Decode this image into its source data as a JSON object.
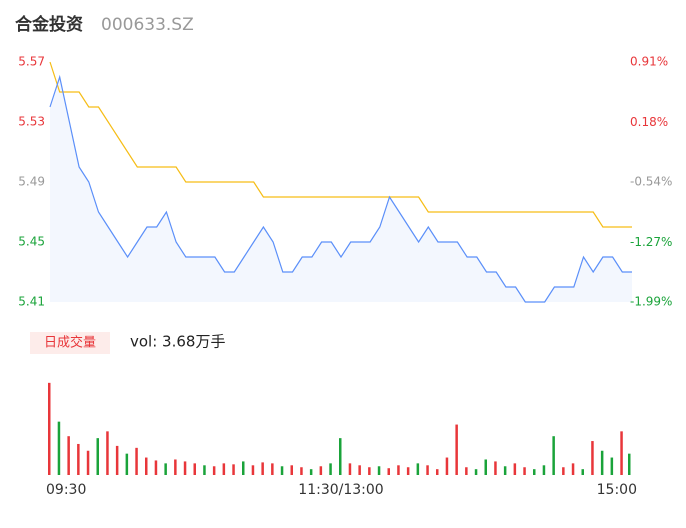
{
  "chart_data": {
    "type": "intraday",
    "title": "合金投资",
    "subtitle": "000633.SZ",
    "x": [
      0,
      4,
      8,
      12,
      16,
      20,
      24,
      28,
      32,
      36,
      40,
      44,
      48,
      52,
      56,
      60,
      64,
      68,
      72,
      76,
      80,
      84,
      88,
      92,
      96,
      100,
      104,
      108,
      112,
      116,
      120,
      124,
      128,
      132,
      136,
      140,
      144,
      148,
      152,
      156,
      160,
      164,
      168,
      172,
      176,
      180,
      184,
      188,
      192,
      196,
      200,
      204,
      208,
      212,
      216,
      220,
      224,
      228,
      232,
      236,
      240
    ],
    "xlim": [
      0,
      240
    ],
    "xticks": [
      {
        "value": 0,
        "label": "09:30"
      },
      {
        "value": 120,
        "label": "11:30/13:00"
      },
      {
        "value": 240,
        "label": "15:00"
      }
    ],
    "series": [
      {
        "name": "price",
        "color": "#5b8ff9",
        "values": [
          5.54,
          5.56,
          5.53,
          5.5,
          5.49,
          5.47,
          5.46,
          5.45,
          5.44,
          5.45,
          5.46,
          5.46,
          5.47,
          5.45,
          5.44,
          5.44,
          5.44,
          5.44,
          5.43,
          5.43,
          5.44,
          5.45,
          5.46,
          5.45,
          5.43,
          5.43,
          5.44,
          5.44,
          5.45,
          5.45,
          5.44,
          5.45,
          5.45,
          5.45,
          5.46,
          5.48,
          5.47,
          5.46,
          5.45,
          5.46,
          5.45,
          5.45,
          5.45,
          5.44,
          5.44,
          5.43,
          5.43,
          5.42,
          5.42,
          5.41,
          5.41,
          5.41,
          5.42,
          5.42,
          5.42,
          5.44,
          5.43,
          5.44,
          5.44,
          5.43,
          5.43
        ]
      },
      {
        "name": "average",
        "color": "#f6bd16",
        "values": [
          5.57,
          5.55,
          5.55,
          5.55,
          5.54,
          5.54,
          5.53,
          5.52,
          5.51,
          5.5,
          5.5,
          5.5,
          5.5,
          5.5,
          5.49,
          5.49,
          5.49,
          5.49,
          5.49,
          5.49,
          5.49,
          5.49,
          5.48,
          5.48,
          5.48,
          5.48,
          5.48,
          5.48,
          5.48,
          5.48,
          5.48,
          5.48,
          5.48,
          5.48,
          5.48,
          5.48,
          5.48,
          5.48,
          5.48,
          5.47,
          5.47,
          5.47,
          5.47,
          5.47,
          5.47,
          5.47,
          5.47,
          5.47,
          5.47,
          5.47,
          5.47,
          5.47,
          5.47,
          5.47,
          5.47,
          5.47,
          5.47,
          5.46,
          5.46,
          5.46,
          5.46
        ]
      }
    ],
    "ylim": [
      5.41,
      5.57
    ],
    "yticks": [
      5.57,
      5.53,
      5.49,
      5.45,
      5.41
    ],
    "ytick_colors": [
      "#e8363a",
      "#e8363a",
      "#999999",
      "#1aa33a",
      "#1aa33a"
    ],
    "y2lim": [
      -1.99,
      0.91
    ],
    "y2ticks": [
      {
        "value": 0.91,
        "label": "0.91%"
      },
      {
        "value": 0.18,
        "label": "0.18%"
      },
      {
        "value": -0.54,
        "label": "-0.54%"
      },
      {
        "value": -1.27,
        "label": "-1.27%"
      },
      {
        "value": -1.99,
        "label": "-1.99%"
      }
    ],
    "volume": {
      "button": "日成交量",
      "label": "vol: 3.68万手",
      "vlim": [
        0,
        100
      ],
      "values": [
        95,
        55,
        40,
        32,
        25,
        38,
        45,
        30,
        22,
        28,
        18,
        15,
        12,
        16,
        14,
        12,
        10,
        9,
        12,
        11,
        14,
        10,
        13,
        12,
        9,
        10,
        8,
        6,
        9,
        12,
        38,
        12,
        10,
        8,
        9,
        7,
        10,
        8,
        12,
        10,
        6,
        18,
        52,
        8,
        6,
        16,
        14,
        9,
        12,
        8,
        6,
        10,
        40,
        8,
        12,
        6,
        35,
        25,
        18,
        45,
        22
      ],
      "colors": [
        "#e8363a",
        "#1aa33a",
        "#e8363a",
        "#e8363a",
        "#e8363a",
        "#1aa33a",
        "#e8363a",
        "#e8363a",
        "#1aa33a",
        "#e8363a",
        "#e8363a",
        "#e8363a",
        "#1aa33a",
        "#e8363a",
        "#e8363a",
        "#e8363a",
        "#1aa33a",
        "#e8363a",
        "#e8363a",
        "#e8363a",
        "#1aa33a",
        "#e8363a",
        "#e8363a",
        "#e8363a",
        "#1aa33a",
        "#e8363a",
        "#e8363a",
        "#1aa33a",
        "#e8363a",
        "#1aa33a",
        "#1aa33a",
        "#e8363a",
        "#e8363a",
        "#e8363a",
        "#1aa33a",
        "#e8363a",
        "#e8363a",
        "#e8363a",
        "#1aa33a",
        "#e8363a",
        "#e8363a",
        "#e8363a",
        "#e8363a",
        "#e8363a",
        "#1aa33a",
        "#1aa33a",
        "#e8363a",
        "#1aa33a",
        "#e8363a",
        "#e8363a",
        "#1aa33a",
        "#1aa33a",
        "#1aa33a",
        "#e8363a",
        "#e8363a",
        "#1aa33a",
        "#e8363a",
        "#1aa33a",
        "#1aa33a",
        "#e8363a",
        "#1aa33a"
      ]
    }
  }
}
